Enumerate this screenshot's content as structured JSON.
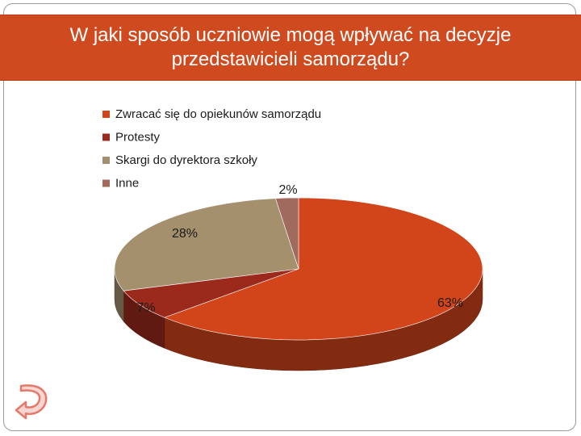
{
  "slide": {
    "title": "W jaki sposób uczniowie  mogą wpływać na decyzje przedstawicieli samorządu?"
  },
  "chart_data": {
    "type": "pie",
    "categories": [
      "Zwracać się do opiekunów samorządu",
      "Protesty",
      "Skargi do dyrektora szkoły",
      "Inne"
    ],
    "values": [
      63,
      7,
      28,
      2
    ],
    "labels": [
      "63%",
      "7%",
      "28%",
      "2%"
    ],
    "colors": [
      "#d2451b",
      "#9b2a1d",
      "#a5906e",
      "#a06a5e"
    ],
    "legend": "top-left",
    "three_d": true
  },
  "nav": {
    "back_icon": "curved-arrow-back-icon",
    "back_color": "#e5786a"
  }
}
